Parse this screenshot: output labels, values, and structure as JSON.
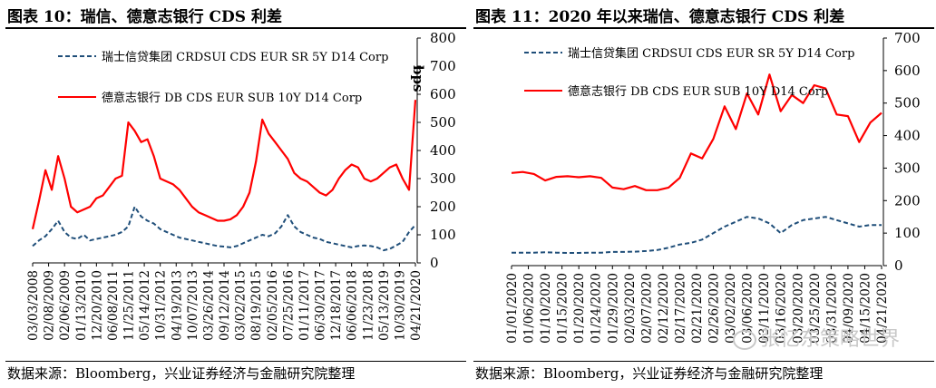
{
  "figures": [
    {
      "title": "图表 10：瑞信、德意志银行 CDS 利差",
      "source": "数据来源：Bloomberg，兴业证券经济与金融研究院整理",
      "chart_data": {
        "type": "line",
        "ylabel": "bps",
        "ylim": [
          0,
          800
        ],
        "yticks": [
          "0",
          "100",
          "200",
          "300",
          "400",
          "500",
          "600",
          "700",
          "800"
        ],
        "x_ticks": [
          "03/03/2008",
          "02/08/2009",
          "02/06/2009",
          "01/13/2010",
          "12/20/2010",
          "06/08/2011",
          "11/25/2011",
          "05/14/2012",
          "10/31/2012",
          "04/19/2013",
          "10/07/2013",
          "03/26/2014",
          "09/12/2014",
          "03/02/2015",
          "08/19/2015",
          "02/05/2016",
          "07/25/2016",
          "01/11/2017",
          "06/30/2017",
          "12/18/2017",
          "06/06/2018",
          "11/23/2018",
          "05/13/2019",
          "10/30/2019",
          "04/21/2020"
        ],
        "series": [
          {
            "name": "瑞士信贷集团 CRDSUI CDS EUR SR 5Y D14 Corp",
            "color": "#1f4e79",
            "dash": true,
            "values": [
              60,
              80,
              95,
              120,
              150,
              110,
              90,
              85,
              100,
              80,
              85,
              90,
              95,
              100,
              110,
              130,
              200,
              165,
              150,
              140,
              120,
              110,
              100,
              90,
              85,
              80,
              75,
              70,
              65,
              60,
              58,
              55,
              60,
              70,
              80,
              90,
              100,
              95,
              105,
              130,
              170,
              130,
              110,
              100,
              90,
              85,
              75,
              70,
              65,
              60,
              55,
              60,
              62,
              60,
              55,
              45,
              50,
              62,
              75,
              110,
              135
            ]
          },
          {
            "name": "德意志银行 DB CDS EUR SUB 10Y D14 Corp",
            "color": "#ff0000",
            "dash": false,
            "values": [
              120,
              220,
              330,
              260,
              380,
              300,
              200,
              180,
              190,
              200,
              230,
              240,
              270,
              300,
              310,
              500,
              470,
              430,
              440,
              380,
              300,
              290,
              280,
              260,
              230,
              200,
              180,
              170,
              160,
              150,
              150,
              155,
              170,
              200,
              250,
              360,
              510,
              460,
              430,
              400,
              370,
              320,
              300,
              290,
              270,
              250,
              240,
              260,
              300,
              330,
              350,
              340,
              300,
              290,
              300,
              320,
              340,
              350,
              300,
              260,
              580
            ]
          }
        ]
      }
    },
    {
      "title": "图表 11：2020 年以来瑞信、德意志银行 CDS 利差",
      "source": "数据来源：Bloomberg，兴业证券经济与金融研究院整理",
      "chart_data": {
        "type": "line",
        "ylim": [
          0,
          700
        ],
        "yticks": [
          "0",
          "100",
          "200",
          "300",
          "400",
          "500",
          "600",
          "700"
        ],
        "x_ticks": [
          "01/01/2020",
          "01/06/2020",
          "01/10/2020",
          "01/15/2020",
          "01/20/2020",
          "01/24/2020",
          "01/29/2020",
          "02/03/2020",
          "02/07/2020",
          "02/12/2020",
          "02/17/2020",
          "02/21/2020",
          "02/26/2020",
          "03/02/2020",
          "03/06/2020",
          "03/11/2020",
          "03/16/2020",
          "03/20/2020",
          "03/25/2020",
          "03/31/2020",
          "04/09/2020",
          "04/15/2020",
          "04/21/2020"
        ],
        "series": [
          {
            "name": "瑞士信贷集团 CRDSUI CDS EUR SR 5Y D14 Corp",
            "color": "#1f4e79",
            "dash": true,
            "values": [
              40,
              40,
              40,
              41,
              40,
              39,
              39,
              40,
              40,
              42,
              42,
              43,
              45,
              48,
              55,
              65,
              70,
              80,
              100,
              120,
              135,
              150,
              145,
              130,
              100,
              125,
              140,
              145,
              150,
              140,
              130,
              120,
              125,
              125
            ]
          },
          {
            "name": "德意志银行 DB CDS EUR SUB 10Y D14 Corp",
            "color": "#ff0000",
            "dash": false,
            "values": [
              285,
              288,
              282,
              262,
              273,
              275,
              272,
              275,
              270,
              240,
              235,
              245,
              232,
              232,
              240,
              270,
              345,
              330,
              390,
              490,
              420,
              530,
              465,
              588,
              475,
              525,
              500,
              555,
              545,
              465,
              460,
              380,
              440,
              470
            ]
          }
        ]
      }
    }
  ],
  "watermark": "张忆东策略世界"
}
